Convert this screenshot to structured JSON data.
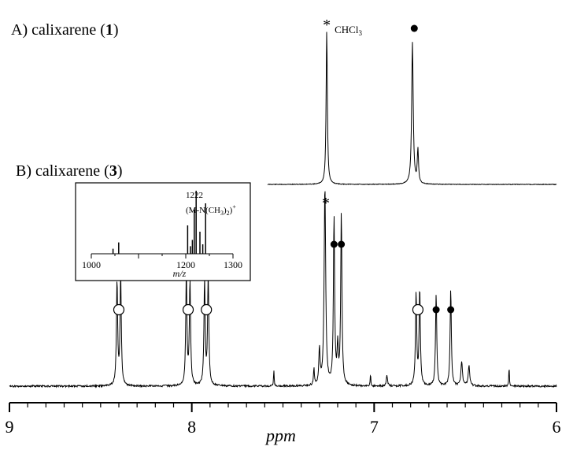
{
  "chart_data": {
    "type": "line",
    "panels": [
      {
        "label_prefix": "A) calixarene (",
        "compound_number": "1",
        "label_suffix": ")",
        "series": [
          {
            "peaks": [
              {
                "ppm": 7.26,
                "height": 1.0,
                "width": 0.004
              },
              {
                "ppm": 6.79,
                "height": 0.92,
                "width": 0.005
              },
              {
                "ppm": 6.76,
                "height": 0.22,
                "width": 0.004
              }
            ]
          }
        ],
        "annotations": [
          {
            "ppm": 7.26,
            "symbol": "*",
            "text": "CHCl3"
          },
          {
            "ppm": 6.78,
            "symbol": "filled-circle"
          }
        ]
      },
      {
        "label_prefix": "B) calixarene (",
        "compound_number": "3",
        "label_suffix": ")",
        "series": [
          {
            "peaks": [
              {
                "ppm": 8.41,
                "height": 0.52,
                "width": 0.004
              },
              {
                "ppm": 8.39,
                "height": 0.55,
                "width": 0.004
              },
              {
                "ppm": 8.03,
                "height": 0.55,
                "width": 0.004
              },
              {
                "ppm": 8.01,
                "height": 0.52,
                "width": 0.004
              },
              {
                "ppm": 7.93,
                "height": 0.52,
                "width": 0.004
              },
              {
                "ppm": 7.91,
                "height": 0.55,
                "width": 0.004
              },
              {
                "ppm": 7.55,
                "height": 0.08,
                "width": 0.002
              },
              {
                "ppm": 7.33,
                "height": 0.08,
                "width": 0.003
              },
              {
                "ppm": 7.3,
                "height": 0.18,
                "width": 0.004
              },
              {
                "ppm": 7.27,
                "height": 1.0,
                "width": 0.005
              },
              {
                "ppm": 7.22,
                "height": 0.84,
                "width": 0.004
              },
              {
                "ppm": 7.2,
                "height": 0.18,
                "width": 0.004
              },
              {
                "ppm": 7.18,
                "height": 0.86,
                "width": 0.004
              },
              {
                "ppm": 7.02,
                "height": 0.06,
                "width": 0.002
              },
              {
                "ppm": 6.93,
                "height": 0.05,
                "width": 0.004
              },
              {
                "ppm": 6.77,
                "height": 0.46,
                "width": 0.004
              },
              {
                "ppm": 6.75,
                "height": 0.48,
                "width": 0.004
              },
              {
                "ppm": 6.66,
                "height": 0.46,
                "width": 0.004
              },
              {
                "ppm": 6.58,
                "height": 0.48,
                "width": 0.004
              },
              {
                "ppm": 6.52,
                "height": 0.12,
                "width": 0.005
              },
              {
                "ppm": 6.48,
                "height": 0.1,
                "width": 0.005
              },
              {
                "ppm": 6.26,
                "height": 0.1,
                "width": 0.002
              }
            ]
          }
        ],
        "annotations": [
          {
            "ppm": 8.4,
            "symbol": "open-circle"
          },
          {
            "ppm": 8.02,
            "symbol": "open-circle"
          },
          {
            "ppm": 7.92,
            "symbol": "open-circle"
          },
          {
            "ppm": 7.265,
            "symbol": "*"
          },
          {
            "ppm": 7.22,
            "symbol": "filled-circle"
          },
          {
            "ppm": 7.18,
            "symbol": "filled-circle"
          },
          {
            "ppm": 6.76,
            "symbol": "open-circle"
          },
          {
            "ppm": 6.66,
            "symbol": "filled-circle"
          },
          {
            "ppm": 6.58,
            "symbol": "filled-circle"
          }
        ]
      }
    ],
    "x_axis": {
      "label": "ppm",
      "ticks": [
        "9",
        "8",
        "7",
        "6"
      ],
      "range": [
        9,
        6
      ],
      "reversed": true
    },
    "inset": {
      "type": "bar",
      "x_label": "m/z",
      "x_ticks": [
        "1000",
        "1200",
        "1300"
      ],
      "x_range": [
        1000,
        1300
      ],
      "peaks": [
        {
          "mz": 1222,
          "height": 1.0
        },
        {
          "mz": 1218,
          "height": 0.7
        },
        {
          "mz": 1242,
          "height": 0.8
        },
        {
          "mz": 1204,
          "height": 0.45
        },
        {
          "mz": 1230,
          "height": 0.35
        },
        {
          "mz": 1058,
          "height": 0.18
        },
        {
          "mz": 1214,
          "height": 0.22
        },
        {
          "mz": 1236,
          "height": 0.15
        },
        {
          "mz": 1210,
          "height": 0.12
        },
        {
          "mz": 1046,
          "height": 0.08
        }
      ],
      "annotation_value": "1222",
      "annotation_formula": "(M-N(CH3)2)+"
    }
  }
}
